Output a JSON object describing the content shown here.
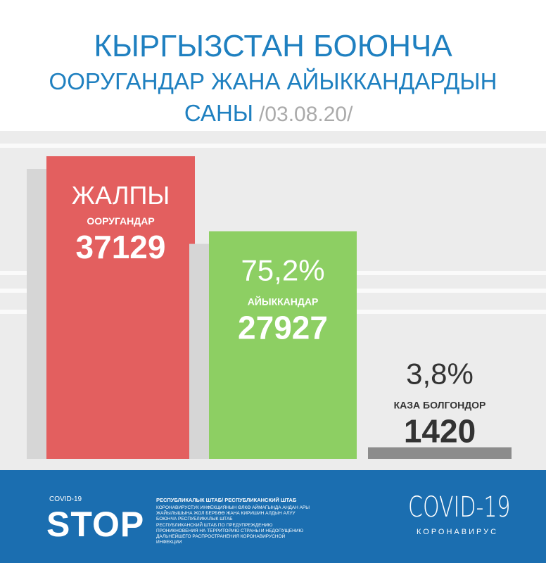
{
  "chart_data": {
    "type": "bar",
    "title": "КЫРГЫЗСТАН БОЮНЧА",
    "subtitle": "ООРУГАНДАР ЖАНА АЙЫККАНДАРДЫН",
    "subtitle_2": "САНЫ",
    "date": "/03.08.20/",
    "annotation": "ЖАЛПЫ",
    "categories": [
      "ООРУГАНДАР",
      "АЙЫККАНДАР",
      "КАЗА БОЛГОНДОР"
    ],
    "values": [
      37129,
      27927,
      1420
    ],
    "percentages": [
      null,
      75.2,
      3.8
    ],
    "percentage_labels": [
      null,
      "75,2%",
      "3,8%"
    ],
    "colors": [
      "#e35f5f",
      "#8dcf63",
      "#8c8c8c"
    ]
  },
  "footer": {
    "logo_top": "COVID-19",
    "logo": "STOP",
    "heading": "РЕСПУБЛИКАЛЫК ШТАБ/ РЕСПУБЛИКАНСКИЙ ШТАБ",
    "text_1": "КОРОНАВИРУСТУК ИНФЕКЦИЯНЫН ӨЛКӨ АЙМАГЫНДА АНДАН АРЫ ЖАЙЫЛЫШЫНА ЖОЛ БЕРБӨӨ ЖАНА КИРИШИН АЛДЫН АЛУУ БОЮНЧА РЕСПУБЛИКАЛЫК ШТАБ",
    "text_2": "РЕСПУБЛИКАНСКИЙ ШТАБ ПО ПРЕДУПРЕЖДЕНИЮ ПРОНИКНОВЕНИЯ НА ТЕРРИТОРИЮ СТРАНЫ И НЕДОПУЩЕНИЮ ДАЛЬНЕЙШЕГО РАСПРОСТРАНЕНИЯ КОРОНАВИРУСНОЙ ИНФЕКЦИИ",
    "brand": "COVID-19",
    "brand_sub": "КОРОНАВИРУС"
  }
}
